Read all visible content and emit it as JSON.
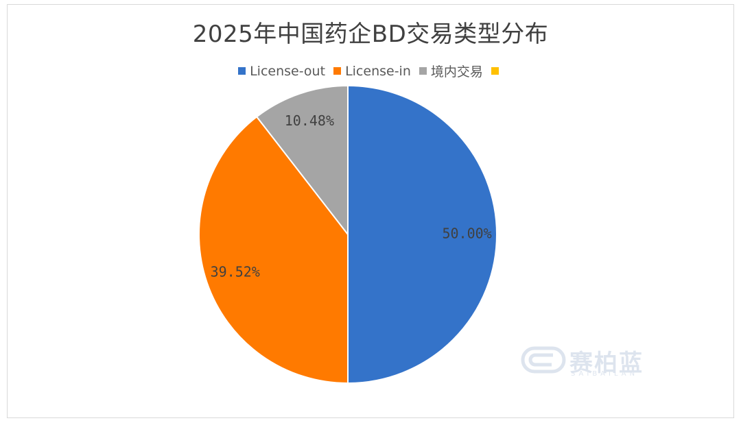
{
  "chart_data": {
    "type": "pie",
    "title": "2025年中国药企BD交易类型分布",
    "legend_position": "top",
    "categories": [
      "License-out",
      "License-in",
      "境内交易",
      ""
    ],
    "values": [
      50.0,
      39.52,
      10.48,
      0
    ],
    "data_labels": [
      "50.00%",
      "39.52%",
      "10.48%",
      ""
    ],
    "colors": [
      "#3473C9",
      "#FF7A00",
      "#A5A5A5",
      "#FFC000"
    ]
  },
  "legend": {
    "items": [
      {
        "label": "License-out",
        "color": "#3473C9"
      },
      {
        "label": "License-in",
        "color": "#FF7A00"
      },
      {
        "label": "境内交易",
        "color": "#A5A5A5"
      },
      {
        "label": "",
        "color": "#FFC000"
      }
    ]
  },
  "watermark": {
    "brand": "赛柏蓝",
    "brand_latin": "SAIBAILAN"
  }
}
